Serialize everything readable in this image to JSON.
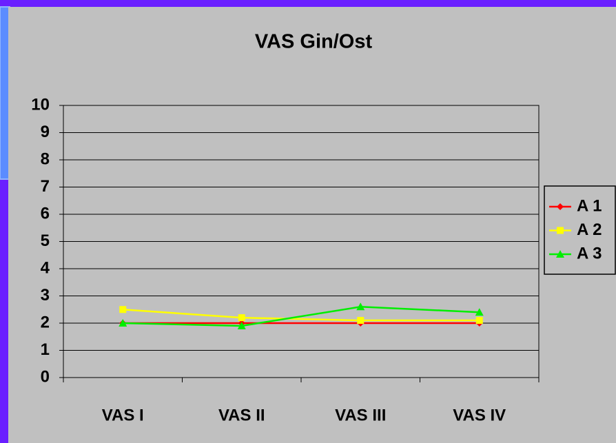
{
  "chart_data": {
    "type": "line",
    "title": "VAS Gin/Ost",
    "categories": [
      "VAS I",
      "VAS II",
      "VAS III",
      "VAS IV"
    ],
    "series": [
      {
        "name": "A 1",
        "color": "#ff0000",
        "marker": "diamond",
        "values": [
          2,
          2,
          2,
          2
        ]
      },
      {
        "name": "A 2",
        "color": "#ffff00",
        "marker": "square",
        "values": [
          2.5,
          2.2,
          2.1,
          2.1
        ]
      },
      {
        "name": "A 3",
        "color": "#00ee00",
        "marker": "triangle",
        "values": [
          2,
          1.9,
          2.6,
          2.4
        ]
      }
    ],
    "ylim": [
      0,
      10
    ],
    "yticks": [
      0,
      1,
      2,
      3,
      4,
      5,
      6,
      7,
      8,
      9,
      10
    ],
    "grid": true,
    "legend": "right"
  }
}
